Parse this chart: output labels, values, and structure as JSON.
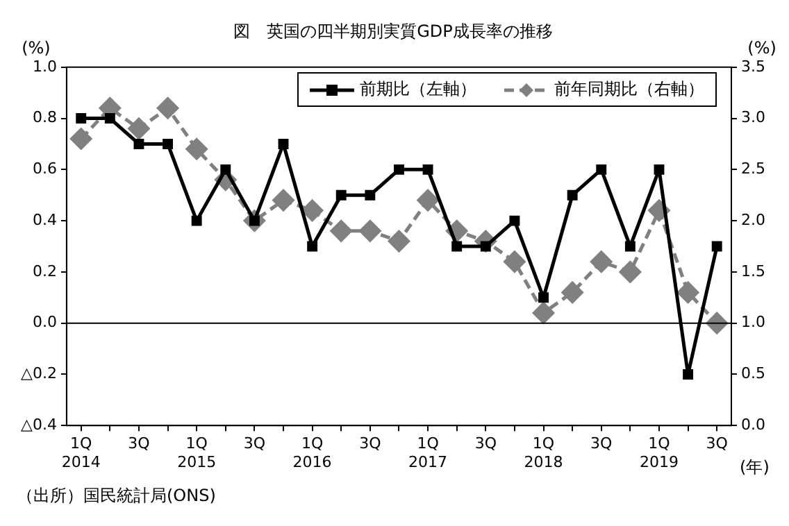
{
  "chart_data": {
    "type": "line",
    "title": "図　英国の四半期別実質GDP成長率の推移",
    "ylabel": "(%)",
    "y2label": "(%)",
    "xlabel": "(年)",
    "categories": [
      "1Q\n2014",
      null,
      "3Q",
      null,
      "1Q\n2015",
      null,
      "3Q",
      null,
      "1Q\n2016",
      null,
      "3Q",
      null,
      "1Q\n2017",
      null,
      "3Q",
      null,
      "1Q\n2018",
      null,
      "3Q",
      null,
      "1Q\n2019",
      null,
      "3Q"
    ],
    "series": [
      {
        "name": "前期比（左軸）",
        "color": "#000000",
        "marker": "square",
        "line_style": "solid",
        "values": [
          0.8,
          0.8,
          0.7,
          0.7,
          0.4,
          0.6,
          0.4,
          0.7,
          0.3,
          0.5,
          0.5,
          0.6,
          0.6,
          0.3,
          0.3,
          0.4,
          0.1,
          0.5,
          0.6,
          0.3,
          0.6,
          -0.2,
          0.3
        ]
      },
      {
        "name": "前年同期比（右軸）",
        "color": "#808080",
        "marker": "diamond",
        "line_style": "dashed",
        "axis": "y2",
        "values": [
          2.8,
          3.1,
          2.9,
          3.1,
          2.7,
          2.4,
          2.0,
          2.2,
          2.1,
          1.9,
          1.9,
          1.8,
          2.2,
          1.9,
          1.8,
          1.6,
          1.1,
          1.3,
          1.6,
          1.5,
          2.1,
          1.3,
          1.0
        ]
      }
    ],
    "ylim": [
      -0.4,
      1.0
    ],
    "yticks": [
      {
        "value": -0.4,
        "label": "△0.4"
      },
      {
        "value": -0.2,
        "label": "△0.2"
      },
      {
        "value": 0,
        "label": "0.0"
      },
      {
        "value": 0.2,
        "label": "0.2"
      },
      {
        "value": 0.4,
        "label": "0.4"
      },
      {
        "value": 0.6,
        "label": "0.6"
      },
      {
        "value": 0.8,
        "label": "0.8"
      },
      {
        "value": 1,
        "label": "1.0"
      }
    ],
    "y2lim": [
      0,
      3.5
    ],
    "y2ticks": [
      {
        "value": 0,
        "label": "0.0"
      },
      {
        "value": 0.5,
        "label": "0.5"
      },
      {
        "value": 1,
        "label": "1.0"
      },
      {
        "value": 1.5,
        "label": "1.5"
      },
      {
        "value": 2,
        "label": "2.0"
      },
      {
        "value": 2.5,
        "label": "2.5"
      },
      {
        "value": 3,
        "label": "3.0"
      },
      {
        "value": 3.5,
        "label": "3.5"
      }
    ],
    "ref_lines": [
      {
        "axis": "y",
        "value": 0,
        "color": "#000000"
      }
    ],
    "legend": "top right",
    "grid": false,
    "annotations": [
      "（出所）国民統計局(ONS)"
    ]
  }
}
